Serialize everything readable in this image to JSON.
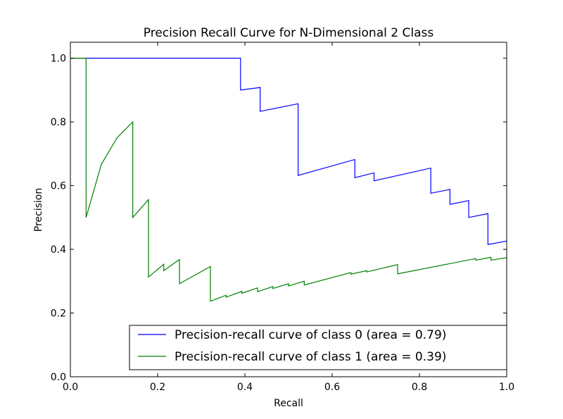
{
  "chart_data": {
    "type": "line",
    "title": "Precision Recall Curve for N-Dimensional 2 Class",
    "xlabel": "Recall",
    "ylabel": "Precision",
    "xlim": [
      0.0,
      1.0
    ],
    "ylim": [
      0.0,
      1.05
    ],
    "xticks": [
      0.0,
      0.2,
      0.4,
      0.6,
      0.8,
      1.0
    ],
    "xtick_labels": [
      "0.0",
      "0.2",
      "0.4",
      "0.6",
      "0.8",
      "1.0"
    ],
    "yticks": [
      0.0,
      0.2,
      0.4,
      0.6,
      0.8,
      1.0
    ],
    "ytick_labels": [
      "0.0",
      "0.2",
      "0.4",
      "0.6",
      "0.8",
      "1.0"
    ],
    "grid": false,
    "legend_position": "lower-right",
    "series": [
      {
        "name": "Precision-recall curve of class 0 (area = 0.79)",
        "color": "#0000ff",
        "points": [
          [
            0.0,
            1.0
          ],
          [
            0.39,
            1.0
          ],
          [
            0.39,
            0.9
          ],
          [
            0.435,
            0.908
          ],
          [
            0.435,
            0.833
          ],
          [
            0.522,
            0.857
          ],
          [
            0.522,
            0.632
          ],
          [
            0.652,
            0.682
          ],
          [
            0.652,
            0.625
          ],
          [
            0.696,
            0.64
          ],
          [
            0.696,
            0.615
          ],
          [
            0.826,
            0.655
          ],
          [
            0.826,
            0.576
          ],
          [
            0.87,
            0.588
          ],
          [
            0.87,
            0.541
          ],
          [
            0.913,
            0.553
          ],
          [
            0.913,
            0.5
          ],
          [
            0.957,
            0.512
          ],
          [
            0.957,
            0.415
          ],
          [
            1.0,
            0.426
          ]
        ]
      },
      {
        "name": "Precision-recall curve of class 1 (area = 0.39)",
        "color": "#008000",
        "points": [
          [
            0.0,
            1.0
          ],
          [
            0.036,
            1.0
          ],
          [
            0.036,
            0.5
          ],
          [
            0.071,
            0.667
          ],
          [
            0.107,
            0.75
          ],
          [
            0.143,
            0.8
          ],
          [
            0.143,
            0.5
          ],
          [
            0.179,
            0.556
          ],
          [
            0.179,
            0.313
          ],
          [
            0.214,
            0.353
          ],
          [
            0.214,
            0.333
          ],
          [
            0.25,
            0.368
          ],
          [
            0.25,
            0.292
          ],
          [
            0.321,
            0.346
          ],
          [
            0.321,
            0.237
          ],
          [
            0.357,
            0.256
          ],
          [
            0.357,
            0.25
          ],
          [
            0.393,
            0.268
          ],
          [
            0.393,
            0.262
          ],
          [
            0.429,
            0.279
          ],
          [
            0.429,
            0.267
          ],
          [
            0.464,
            0.283
          ],
          [
            0.464,
            0.277
          ],
          [
            0.5,
            0.292
          ],
          [
            0.5,
            0.285
          ],
          [
            0.536,
            0.3
          ],
          [
            0.536,
            0.288
          ],
          [
            0.643,
            0.327
          ],
          [
            0.643,
            0.322
          ],
          [
            0.679,
            0.333
          ],
          [
            0.679,
            0.329
          ],
          [
            0.75,
            0.352
          ],
          [
            0.75,
            0.323
          ],
          [
            0.929,
            0.371
          ],
          [
            0.929,
            0.366
          ],
          [
            0.964,
            0.375
          ],
          [
            0.964,
            0.366
          ],
          [
            1.0,
            0.374
          ]
        ]
      }
    ]
  }
}
